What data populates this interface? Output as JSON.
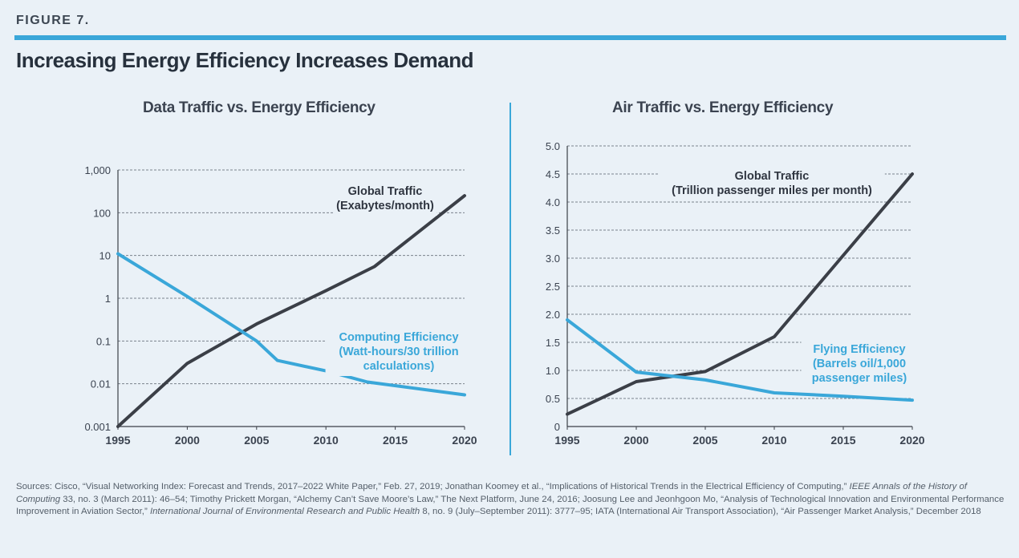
{
  "figure_label": "FIGURE 7.",
  "title": "Increasing Energy Efficiency Increases Demand",
  "colors": {
    "accent": "#3aa7d9",
    "dark_line": "#3b3f47",
    "blue_line": "#3aa7d9"
  },
  "chart_data": [
    {
      "type": "line",
      "title": "Data Traffic vs. Energy Efficiency",
      "xlabel": "",
      "ylabel": "",
      "y_scale": "log",
      "ylim": [
        0.001,
        1000
      ],
      "xlim": [
        1995,
        2020
      ],
      "x_ticks": [
        "1995",
        "2000",
        "2005",
        "2010",
        "2015",
        "2020"
      ],
      "y_ticks": [
        "0.001",
        "0.01",
        "0.1",
        "1",
        "10",
        "100",
        "1,000"
      ],
      "grid": true,
      "series": [
        {
          "name": "Global Traffic",
          "label_lines": [
            "Global Traffic",
            "(Exabytes/month)"
          ],
          "color": "#3b3f47",
          "points": [
            [
              1995,
              0.001
            ],
            [
              2000,
              0.03
            ],
            [
              2005,
              0.25
            ],
            [
              2010,
              1.5
            ],
            [
              2013.5,
              5.5
            ],
            [
              2020,
              250
            ]
          ]
        },
        {
          "name": "Computing Efficiency",
          "label_lines": [
            "Computing Efficiency",
            "(Watt-hours/30 trillion",
            "calculations)"
          ],
          "color": "#3aa7d9",
          "points": [
            [
              1995,
              11
            ],
            [
              2000,
              1.1
            ],
            [
              2005,
              0.1
            ],
            [
              2006.5,
              0.035
            ],
            [
              2010,
              0.02
            ],
            [
              2013,
              0.011
            ],
            [
              2020,
              0.0055
            ]
          ]
        }
      ]
    },
    {
      "type": "line",
      "title": "Air Traffic vs. Energy Efficiency",
      "xlabel": "",
      "ylabel": "",
      "y_scale": "linear",
      "ylim": [
        0,
        5.0
      ],
      "xlim": [
        1995,
        2020
      ],
      "x_ticks": [
        "1995",
        "2000",
        "2005",
        "2010",
        "2015",
        "2020"
      ],
      "y_ticks": [
        "0",
        "0.5",
        "1.0",
        "1.5",
        "2.0",
        "2.5",
        "3.0",
        "3.5",
        "4.0",
        "4.5",
        "5.0"
      ],
      "grid": true,
      "series": [
        {
          "name": "Global Traffic",
          "label_lines": [
            "Global Traffic",
            "(Trillion passenger miles per month)"
          ],
          "color": "#3b3f47",
          "points": [
            [
              1995,
              0.22
            ],
            [
              2000,
              0.8
            ],
            [
              2005,
              0.98
            ],
            [
              2010,
              1.6
            ],
            [
              2015,
              3.05
            ],
            [
              2020,
              4.5
            ]
          ]
        },
        {
          "name": "Flying Efficiency",
          "label_lines": [
            "Flying Efficiency",
            "(Barrels oil/1,000",
            "passenger miles)"
          ],
          "color": "#3aa7d9",
          "points": [
            [
              1995,
              1.9
            ],
            [
              2000,
              0.97
            ],
            [
              2005,
              0.83
            ],
            [
              2010,
              0.6
            ],
            [
              2015,
              0.54
            ],
            [
              2020,
              0.47
            ]
          ]
        }
      ]
    }
  ],
  "sources": {
    "part1": "Sources: Cisco, “Visual Networking Index: Forecast and Trends, 2017–2022 White Paper,” Feb. 27, 2019; Jonathan Koomey et al., “Implications of Historical Trends in the Electrical Efficiency of Computing,” ",
    "part2": "IEEE Annals of the History of Computing",
    "part3": " 33, no. 3 (March 2011): 46–54;  Timothy Prickett Morgan, “Alchemy Can’t Save Moore’s Law,” The Next Platform, June 24, 2016; Joosung Lee and Jeonhgoon Mo, “Analysis of Technological Innovation and Environmental Performance Improvement in Aviation Sector,” ",
    "part4": "International Journal of Environmental Research and Public Health",
    "part5": " 8, no. 9 (July–September 2011): 3777–95; IATA (International Air Transport Association), “Air Passenger Market Analysis,” December 2018"
  }
}
